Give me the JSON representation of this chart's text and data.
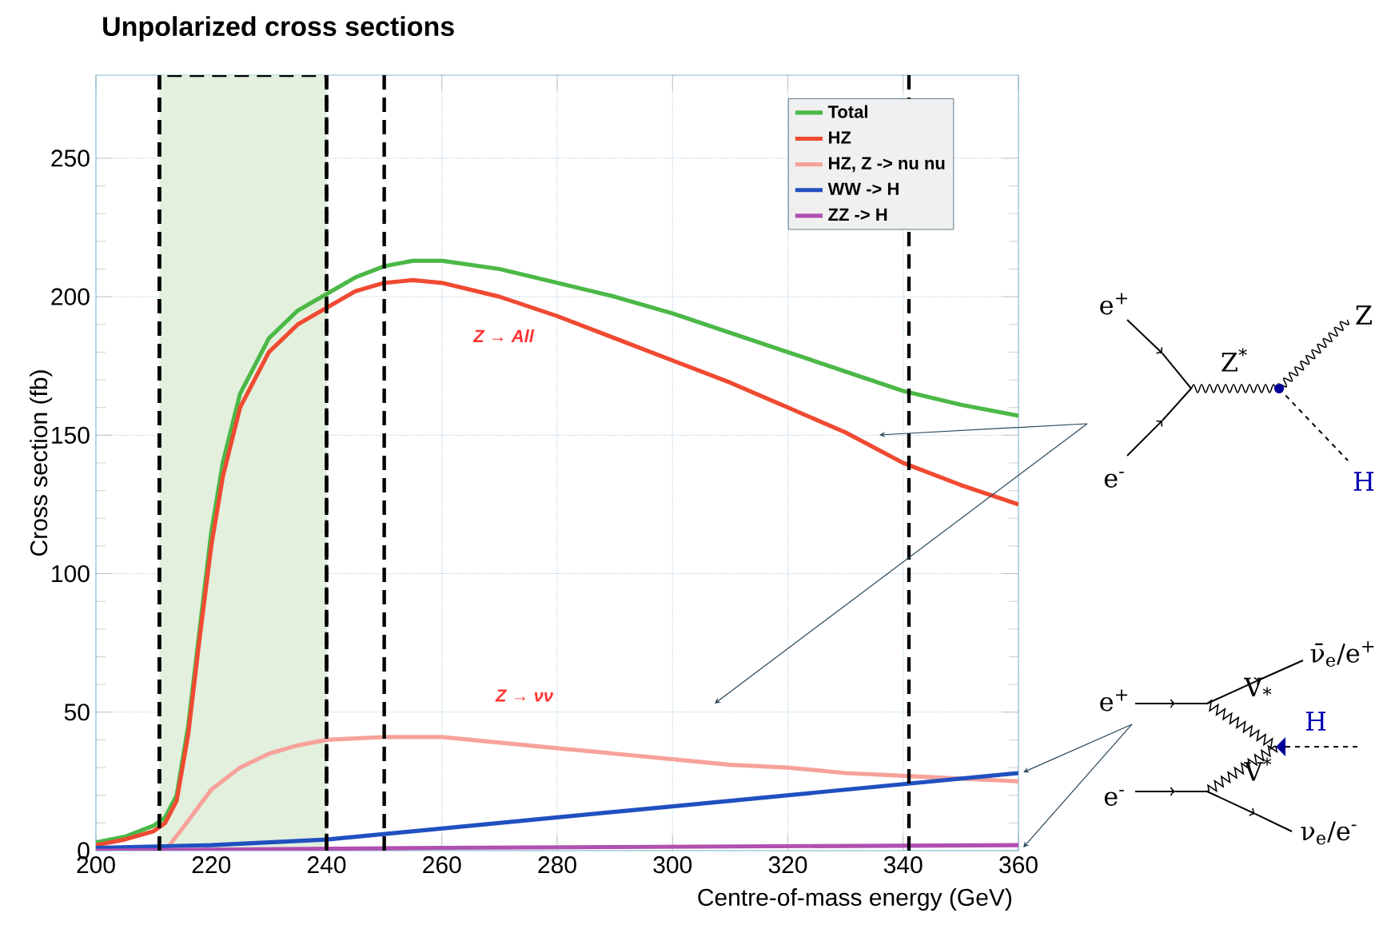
{
  "chart_data": {
    "type": "line",
    "title": "Unpolarized cross sections",
    "xlabel": "Centre-of-mass energy (GeV)",
    "ylabel": "Cross section (fb)",
    "xlim": [
      200,
      360
    ],
    "ylim": [
      0,
      280
    ],
    "xticks": [
      200,
      220,
      240,
      260,
      280,
      300,
      320,
      340,
      360
    ],
    "yticks": [
      0,
      50,
      100,
      150,
      200,
      250
    ],
    "grid": true,
    "legend": "top right",
    "marker": "none",
    "line_style": "solid",
    "series": [
      {
        "name": "Total",
        "color": "#4cb847",
        "x": [
          200,
          205,
          210,
          212,
          214,
          216,
          218,
          220,
          222,
          225,
          230,
          235,
          240,
          245,
          250,
          255,
          260,
          270,
          280,
          290,
          300,
          310,
          320,
          330,
          340,
          350,
          360
        ],
        "values": [
          3,
          5,
          9,
          12,
          20,
          45,
          80,
          115,
          140,
          165,
          185,
          195,
          201,
          207,
          211,
          213,
          213,
          210,
          205,
          200,
          194,
          187,
          180,
          173,
          166,
          161,
          157
        ]
      },
      {
        "name": "HZ",
        "color": "#f04a32",
        "x": [
          200,
          205,
          210,
          212,
          214,
          216,
          218,
          220,
          222,
          225,
          230,
          235,
          240,
          245,
          250,
          255,
          260,
          270,
          280,
          290,
          300,
          310,
          320,
          330,
          340,
          350,
          360
        ],
        "values": [
          2,
          4,
          7,
          10,
          18,
          42,
          77,
          110,
          135,
          160,
          180,
          190,
          196,
          202,
          205,
          206,
          205,
          200,
          193,
          185,
          177,
          169,
          160,
          151,
          140,
          132,
          125
        ]
      },
      {
        "name": "HZ, Z -> nu nu",
        "color": "#f6a29a",
        "x": [
          212,
          215,
          220,
          225,
          230,
          235,
          240,
          250,
          260,
          270,
          280,
          290,
          300,
          310,
          320,
          330,
          340,
          350,
          360
        ],
        "values": [
          0,
          8,
          22,
          30,
          35,
          38,
          40,
          41,
          41,
          39,
          37,
          35,
          33,
          31,
          30,
          28,
          27,
          26,
          25
        ]
      },
      {
        "name": "WW -> H",
        "color": "#2050c0",
        "x": [
          200,
          220,
          240,
          260,
          280,
          300,
          320,
          340,
          360
        ],
        "values": [
          1,
          2,
          4,
          8,
          12,
          16,
          20,
          24,
          28
        ]
      },
      {
        "name": "ZZ -> H",
        "color": "#b050b0",
        "x": [
          200,
          260,
          360
        ],
        "values": [
          0,
          1,
          2
        ]
      }
    ],
    "bands": [
      {
        "axis": "x",
        "from": 211,
        "to": 240,
        "color": "#e2f0dd"
      }
    ],
    "ref_lines": [
      {
        "axis": "x",
        "value": 211,
        "line_style": "dashed",
        "color": "#000000"
      },
      {
        "axis": "x",
        "value": 240,
        "line_style": "dashed",
        "color": "#000000"
      },
      {
        "axis": "x",
        "value": 250,
        "line_style": "dashed",
        "color": "#000000"
      },
      {
        "axis": "x",
        "value": 341,
        "line_style": "dashed",
        "color": "#000000"
      }
    ],
    "annotations": [
      "Z → All",
      "Z → νν",
      "e$^{+}$",
      "e$^{-}$",
      "Z$^{*}$",
      "Z",
      "H",
      "e$^{+}$",
      "e$^{-}$",
      "V$_{*}$",
      "V$^{*}$",
      "H",
      "ν̄$_{e}$/e$^{+}$",
      "ν$_{e}$/e$^{-}$"
    ]
  }
}
